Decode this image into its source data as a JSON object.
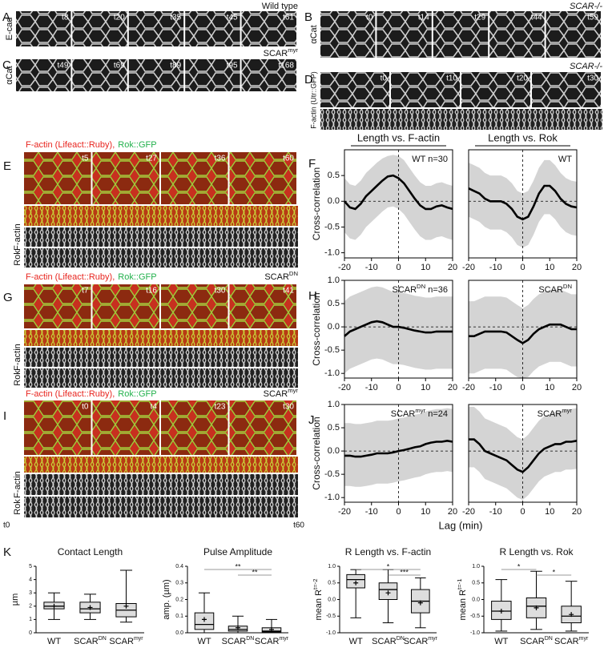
{
  "panels": [
    {
      "letter": "A",
      "stain": "E-cad",
      "genotype": {
        "text": "Wild type"
      },
      "times": [
        "t8",
        "t20",
        "t35",
        "t45",
        "t61"
      ]
    },
    {
      "letter": "B",
      "stain": "αCat",
      "genotype": {
        "text": "SCAR-/-",
        "italic": true
      },
      "times": [
        "t0",
        "t14",
        "t29",
        "t44",
        "t59"
      ]
    },
    {
      "letter": "C",
      "stain": "αCat",
      "genotype": {
        "text": "SCAR",
        "sup": "myr"
      },
      "times": [
        "t49",
        "t69",
        "t89",
        "t95",
        "t168"
      ]
    },
    {
      "letter": "D",
      "stain": "F-actin (Utr::GFP)",
      "genotype": {
        "text": "SCAR-/-",
        "italic": true
      },
      "times": [
        "t0",
        "t10",
        "t20",
        "t30"
      ]
    },
    {
      "letter": "E",
      "legend": [
        {
          "text": "F-actin (Lifeact::Ruby),",
          "color": "#e8251f"
        },
        {
          "text": "Rok::GFP",
          "color": "#22b14c"
        }
      ],
      "times": [
        "t5",
        "t27",
        "t36",
        "t60"
      ],
      "kymo_labels": [
        "F-actin",
        "Rok"
      ]
    },
    {
      "letter": "G",
      "legend": [
        {
          "text": "F-actin (Lifeact::Ruby),",
          "color": "#e8251f"
        },
        {
          "text": "Rok::GFP",
          "color": "#22b14c"
        }
      ],
      "genotype": {
        "text": "SCAR",
        "sup": "DN"
      },
      "times": [
        "t7",
        "t16",
        "t30",
        "t41"
      ],
      "kymo_labels": [
        "F-actin",
        "Rok"
      ]
    },
    {
      "letter": "I",
      "legend": [
        {
          "text": "F-actin (Lifeact::Ruby),",
          "color": "#e8251f"
        },
        {
          "text": "Rok::GFP",
          "color": "#22b14c"
        }
      ],
      "genotype": {
        "text": "SCAR",
        "sup": "myr"
      },
      "times": [
        "t0",
        "t4",
        "t23",
        "t30"
      ],
      "kymo_labels": [
        "F-actin",
        "Rok"
      ],
      "ends": [
        "t0",
        "t60"
      ]
    }
  ],
  "chart_data": [
    {
      "type": "line",
      "panel": "F",
      "title": "Length vs. F-actin",
      "ylabel": "Cross-correlation",
      "annotation": {
        "text": "WT n=30"
      },
      "x": [
        -20,
        -18,
        -16,
        -14,
        -12,
        -10,
        -8,
        -6,
        -4,
        -2,
        0,
        2,
        4,
        6,
        8,
        10,
        12,
        14,
        16,
        18,
        20
      ],
      "xlim": [
        -20,
        20
      ],
      "xticks": [
        -20,
        -10,
        0,
        10,
        20
      ],
      "ylim": [
        -1.1,
        1.0
      ],
      "yticks": [
        0.5,
        {
          "value": 0,
          "label": "0.0"
        },
        -0.5,
        {
          "value": -1,
          "label": "-1.0"
        }
      ],
      "band_color": "#d4d4d4",
      "series": [
        {
          "color": "#000000",
          "values": [
            0.0,
            -0.12,
            -0.15,
            -0.05,
            0.1,
            0.2,
            0.3,
            0.4,
            0.48,
            0.5,
            0.45,
            0.35,
            0.2,
            0.05,
            -0.08,
            -0.15,
            -0.15,
            -0.1,
            -0.08,
            -0.12,
            -0.15
          ],
          "upper": [
            0.45,
            0.33,
            0.3,
            0.4,
            0.55,
            0.65,
            0.75,
            0.83,
            0.88,
            0.9,
            0.88,
            0.8,
            0.65,
            0.5,
            0.37,
            0.3,
            0.3,
            0.35,
            0.37,
            0.33,
            0.3
          ],
          "lower": [
            -0.6,
            -0.72,
            -0.75,
            -0.65,
            -0.5,
            -0.4,
            -0.3,
            -0.2,
            -0.12,
            -0.1,
            -0.15,
            -0.25,
            -0.4,
            -0.55,
            -0.68,
            -0.75,
            -0.75,
            -0.7,
            -0.68,
            -0.72,
            -0.75
          ]
        }
      ]
    },
    {
      "type": "line",
      "title": "Length vs. Rok",
      "annotation": {
        "text": "WT"
      },
      "x": [
        -20,
        -18,
        -16,
        -14,
        -12,
        -10,
        -8,
        -6,
        -4,
        -2,
        0,
        2,
        4,
        6,
        8,
        10,
        12,
        14,
        16,
        18,
        20
      ],
      "xlim": [
        -20,
        20
      ],
      "xticks": [
        -20,
        -10,
        0,
        10,
        20
      ],
      "ylim": [
        -1.1,
        1.0
      ],
      "band_color": "#d4d4d4",
      "series": [
        {
          "color": "#000000",
          "values": [
            0.25,
            0.2,
            0.15,
            0.05,
            0.0,
            0.0,
            0.0,
            -0.05,
            -0.15,
            -0.3,
            -0.35,
            -0.3,
            -0.1,
            0.15,
            0.3,
            0.3,
            0.2,
            0.05,
            -0.05,
            -0.1,
            -0.12
          ],
          "upper": [
            0.75,
            0.7,
            0.65,
            0.55,
            0.5,
            0.5,
            0.5,
            0.45,
            0.35,
            0.2,
            0.15,
            0.2,
            0.4,
            0.65,
            0.8,
            0.8,
            0.7,
            0.55,
            0.45,
            0.4,
            0.38
          ],
          "lower": [
            -0.3,
            -0.35,
            -0.4,
            -0.5,
            -0.55,
            -0.55,
            -0.55,
            -0.6,
            -0.7,
            -0.85,
            -0.9,
            -0.85,
            -0.65,
            -0.4,
            -0.25,
            -0.25,
            -0.35,
            -0.5,
            -0.6,
            -0.65,
            -0.67
          ]
        }
      ]
    },
    {
      "type": "line",
      "panel": "H",
      "ylabel": "Cross-correlation",
      "annotation": {
        "text": "SCAR",
        "sup": "DN",
        "suffix": " n=36"
      },
      "x": [
        -20,
        -18,
        -16,
        -14,
        -12,
        -10,
        -8,
        -6,
        -4,
        -2,
        0,
        2,
        4,
        6,
        8,
        10,
        12,
        14,
        16,
        18,
        20
      ],
      "xlim": [
        -20,
        20
      ],
      "xticks": [
        -20,
        -10,
        0,
        10,
        20
      ],
      "ylim": [
        -1.1,
        1.0
      ],
      "yticks": [
        {
          "value": 1,
          "label": "1.0"
        },
        0.5,
        {
          "value": 0,
          "label": "0.0"
        },
        -0.5,
        {
          "value": -1,
          "label": "-1.0"
        }
      ],
      "band_color": "#d4d4d4",
      "series": [
        {
          "color": "#000000",
          "values": [
            -0.2,
            -0.1,
            -0.05,
            0.0,
            0.05,
            0.1,
            0.12,
            0.1,
            0.05,
            0.0,
            0.0,
            -0.02,
            -0.05,
            -0.08,
            -0.1,
            -0.12,
            -0.12,
            -0.1,
            -0.1,
            -0.1,
            -0.1
          ],
          "upper": [
            0.55,
            0.65,
            0.7,
            0.75,
            0.8,
            0.85,
            0.87,
            0.85,
            0.8,
            0.75,
            0.75,
            0.73,
            0.7,
            0.67,
            0.65,
            0.63,
            0.63,
            0.65,
            0.65,
            0.65,
            0.65
          ],
          "lower": [
            -1.0,
            -0.9,
            -0.85,
            -0.8,
            -0.75,
            -0.7,
            -0.68,
            -0.7,
            -0.75,
            -0.8,
            -0.8,
            -0.82,
            -0.85,
            -0.88,
            -0.9,
            -0.92,
            -0.92,
            -0.9,
            -0.9,
            -0.9,
            -0.9
          ]
        }
      ]
    },
    {
      "type": "line",
      "annotation": {
        "text": "SCAR",
        "sup": "DN"
      },
      "x": [
        -20,
        -18,
        -16,
        -14,
        -12,
        -10,
        -8,
        -6,
        -4,
        -2,
        0,
        2,
        4,
        6,
        8,
        10,
        12,
        14,
        16,
        18,
        20
      ],
      "xlim": [
        -20,
        20
      ],
      "xticks": [
        -20,
        -10,
        0,
        10,
        20
      ],
      "ylim": [
        -1.1,
        1.0
      ],
      "band_color": "#d4d4d4",
      "series": [
        {
          "color": "#000000",
          "values": [
            -0.2,
            -0.2,
            -0.15,
            -0.1,
            -0.1,
            -0.1,
            -0.1,
            -0.12,
            -0.2,
            -0.28,
            -0.35,
            -0.28,
            -0.15,
            -0.05,
            0.0,
            0.05,
            0.05,
            0.05,
            0.0,
            -0.05,
            -0.05
          ],
          "upper": [
            0.55,
            0.55,
            0.6,
            0.65,
            0.65,
            0.65,
            0.65,
            0.63,
            0.55,
            0.47,
            0.4,
            0.47,
            0.6,
            0.7,
            0.75,
            0.8,
            0.8,
            0.8,
            0.75,
            0.7,
            0.7
          ],
          "lower": [
            -1.0,
            -1.0,
            -0.95,
            -0.9,
            -0.9,
            -0.9,
            -0.9,
            -0.92,
            -1.0,
            -1.08,
            -1.1,
            -1.08,
            -0.95,
            -0.85,
            -0.8,
            -0.75,
            -0.75,
            -0.75,
            -0.8,
            -0.85,
            -0.85
          ]
        }
      ]
    },
    {
      "type": "line",
      "panel": "J",
      "ylabel": "Cross-correlation",
      "xlabel": "Lag (min)",
      "annotation": {
        "text": "SCAR",
        "sup": "myr",
        "suffix": " n=24"
      },
      "x": [
        -20,
        -18,
        -16,
        -14,
        -12,
        -10,
        -8,
        -6,
        -4,
        -2,
        0,
        2,
        4,
        6,
        8,
        10,
        12,
        14,
        16,
        18,
        20
      ],
      "xlim": [
        -20,
        20
      ],
      "xticks": [
        -20,
        -10,
        0,
        10,
        20
      ],
      "ylim": [
        -1.1,
        1.0
      ],
      "yticks": [
        {
          "value": 1,
          "label": "1.0"
        },
        0.5,
        {
          "value": 0,
          "label": "0.0"
        },
        -0.5,
        {
          "value": -1,
          "label": "-1.0"
        }
      ],
      "band_color": "#d4d4d4",
      "series": [
        {
          "color": "#000000",
          "values": [
            -0.1,
            -0.1,
            -0.12,
            -0.12,
            -0.1,
            -0.08,
            -0.05,
            -0.05,
            -0.05,
            -0.03,
            0.0,
            0.02,
            0.05,
            0.08,
            0.1,
            0.15,
            0.18,
            0.2,
            0.2,
            0.22,
            0.2
          ],
          "upper": [
            0.6,
            0.6,
            0.58,
            0.58,
            0.6,
            0.62,
            0.65,
            0.65,
            0.65,
            0.67,
            0.7,
            0.72,
            0.75,
            0.78,
            0.8,
            0.85,
            0.88,
            0.9,
            0.9,
            0.92,
            0.9
          ],
          "lower": [
            -0.75,
            -0.75,
            -0.77,
            -0.77,
            -0.75,
            -0.73,
            -0.7,
            -0.7,
            -0.7,
            -0.68,
            -0.65,
            -0.63,
            -0.6,
            -0.57,
            -0.55,
            -0.5,
            -0.47,
            -0.45,
            -0.45,
            -0.43,
            -0.45
          ]
        }
      ]
    },
    {
      "type": "line",
      "annotation": {
        "text": "SCAR",
        "sup": "myr"
      },
      "x": [
        -20,
        -18,
        -16,
        -14,
        -12,
        -10,
        -8,
        -6,
        -4,
        -2,
        0,
        2,
        4,
        6,
        8,
        10,
        12,
        14,
        16,
        18,
        20
      ],
      "xlim": [
        -20,
        20
      ],
      "xticks": [
        -20,
        -10,
        0,
        10,
        20
      ],
      "ylim": [
        -1.1,
        1.0
      ],
      "band_color": "#d4d4d4",
      "series": [
        {
          "color": "#000000",
          "values": [
            0.25,
            0.25,
            0.15,
            0.0,
            -0.05,
            -0.1,
            -0.15,
            -0.2,
            -0.3,
            -0.4,
            -0.45,
            -0.35,
            -0.2,
            -0.05,
            0.05,
            0.1,
            0.15,
            0.15,
            0.2,
            0.2,
            0.22
          ],
          "upper": [
            0.95,
            0.95,
            0.85,
            0.7,
            0.65,
            0.6,
            0.55,
            0.5,
            0.4,
            0.3,
            0.25,
            0.35,
            0.5,
            0.65,
            0.75,
            0.8,
            0.85,
            0.85,
            0.9,
            0.9,
            0.92
          ],
          "lower": [
            -0.35,
            -0.35,
            -0.45,
            -0.6,
            -0.65,
            -0.7,
            -0.75,
            -0.8,
            -0.9,
            -1.0,
            -1.05,
            -0.95,
            -0.8,
            -0.65,
            -0.55,
            -0.5,
            -0.45,
            -0.45,
            -0.4,
            -0.4,
            -0.38
          ]
        }
      ]
    },
    {
      "type": "box",
      "panel": "K",
      "title": "Contact Length",
      "ylabel": {
        "text": "µm"
      },
      "categories": [
        "WT",
        "SCAR",
        "SCAR"
      ],
      "category_superscripts": [
        null,
        "DN",
        "myr"
      ],
      "color": "#dddddd",
      "ylim": [
        0,
        5
      ],
      "yticks": [
        0,
        1,
        2,
        3,
        4,
        5
      ],
      "boxes": [
        {
          "min": 1.0,
          "q1": 1.8,
          "median": 2.0,
          "q3": 2.3,
          "max": 3.0,
          "mean": 2.0
        },
        {
          "min": 1.0,
          "q1": 1.5,
          "median": 1.8,
          "q3": 2.3,
          "max": 2.9,
          "mean": 1.9
        },
        {
          "min": 0.8,
          "q1": 1.2,
          "median": 1.7,
          "q3": 2.2,
          "max": 4.7,
          "mean": 2.0
        }
      ]
    },
    {
      "type": "box",
      "title": "Pulse Amplitude",
      "ylabel": {
        "text": "amp. (µm)"
      },
      "categories": [
        "WT",
        "SCAR",
        "SCAR"
      ],
      "category_superscripts": [
        null,
        "DN",
        "myr"
      ],
      "color": "#dddddd",
      "ylim": [
        0,
        0.4
      ],
      "yticks": [
        {
          "value": 0,
          "label": "0.0"
        },
        0.1,
        0.2,
        0.3,
        0.4
      ],
      "boxes": [
        {
          "min": 0.0,
          "q1": 0.02,
          "median": 0.05,
          "q3": 0.12,
          "max": 0.24,
          "mean": 0.08
        },
        {
          "min": 0.0,
          "q1": 0.01,
          "median": 0.02,
          "q3": 0.04,
          "max": 0.1,
          "mean": 0.03
        },
        {
          "min": 0.0,
          "q1": 0.005,
          "median": 0.01,
          "q3": 0.03,
          "max": 0.08,
          "mean": 0.02
        }
      ],
      "significance": [
        {
          "from": 0,
          "to": 2,
          "label": "**"
        },
        {
          "from": 1,
          "to": 2,
          "label": "**"
        }
      ]
    },
    {
      "type": "box",
      "title": "R Length vs. F-actin",
      "ylabel": {
        "text": "mean R",
        "sup": "t=-2"
      },
      "categories": [
        "WT",
        "SCAR",
        "SCAR"
      ],
      "category_superscripts": [
        null,
        "DN",
        "myr"
      ],
      "color": "#dddddd",
      "ylim": [
        -1,
        1
      ],
      "yticks": [
        {
          "value": -1,
          "label": "-1.0"
        },
        -0.5,
        {
          "value": 0,
          "label": "0.0"
        },
        0.5,
        {
          "value": 1,
          "label": "1.0"
        }
      ],
      "boxes": [
        {
          "min": -0.55,
          "q1": 0.35,
          "median": 0.6,
          "q3": 0.75,
          "max": 0.9,
          "mean": 0.5
        },
        {
          "min": -0.7,
          "q1": 0.0,
          "median": 0.3,
          "q3": 0.5,
          "max": 0.9,
          "mean": 0.2
        },
        {
          "min": -0.85,
          "q1": -0.4,
          "median": -0.05,
          "q3": 0.3,
          "max": 0.65,
          "mean": -0.1
        }
      ],
      "significance": [
        {
          "from": 0,
          "to": 2,
          "label": "*"
        },
        {
          "from": 1,
          "to": 2,
          "label": "***"
        }
      ]
    },
    {
      "type": "box",
      "title": "R Length vs. Rok",
      "ylabel": {
        "text": "mean R",
        "sup": "t=-1"
      },
      "categories": [
        "WT",
        "SCAR",
        "SCAR"
      ],
      "category_superscripts": [
        null,
        "DN",
        "myr"
      ],
      "color": "#dddddd",
      "ylim": [
        -1,
        1
      ],
      "yticks": [
        {
          "value": -1,
          "label": "-1.0"
        },
        -0.5,
        {
          "value": 0,
          "label": "0.0"
        },
        0.5,
        {
          "value": 1,
          "label": "1.0"
        }
      ],
      "boxes": [
        {
          "min": -0.95,
          "q1": -0.6,
          "median": -0.35,
          "q3": -0.05,
          "max": 0.6,
          "mean": -0.35
        },
        {
          "min": -0.9,
          "q1": -0.55,
          "median": -0.2,
          "q3": 0.05,
          "max": 0.85,
          "mean": -0.25
        },
        {
          "min": -0.95,
          "q1": -0.7,
          "median": -0.5,
          "q3": -0.2,
          "max": 0.55,
          "mean": -0.45
        }
      ],
      "significance": [
        {
          "from": 0,
          "to": 1,
          "label": "*"
        },
        {
          "from": 1,
          "to": 2,
          "label": "*"
        }
      ]
    }
  ]
}
